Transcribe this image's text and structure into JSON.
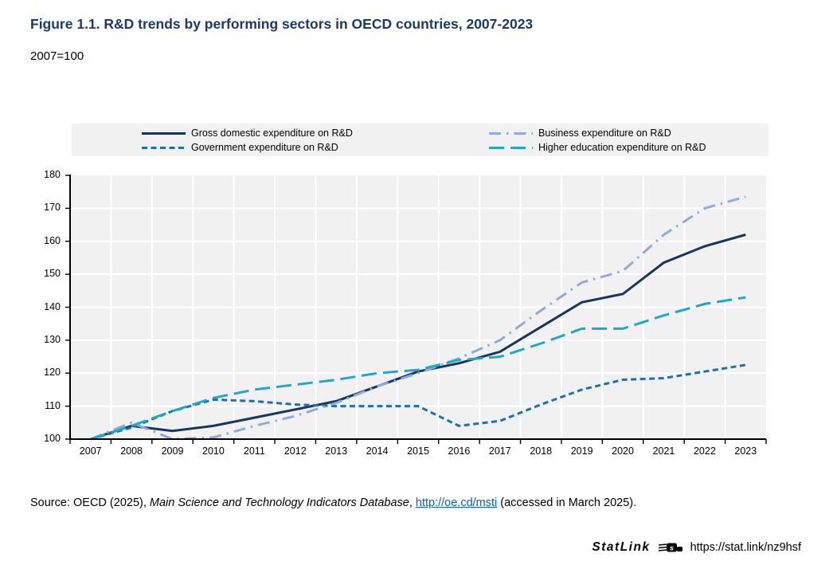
{
  "header": {
    "title": "Figure 1.1. R&D trends by performing sectors in OECD countries, 2007-2023",
    "subtitle": "2007=100"
  },
  "colors": {
    "title_navy": "#1a3a6b",
    "plot_background": "#f1f1f1",
    "gridline": "#ffffff",
    "axis": "#000000",
    "link_blue": "#0563c1"
  },
  "chart_data": {
    "type": "line",
    "title": "R&D trends by performing sectors in OECD countries, 2007-2023",
    "index_note": "2007=100",
    "categories": [
      "2007",
      "2008",
      "2009",
      "2010",
      "2011",
      "2012",
      "2013",
      "2014",
      "2015",
      "2016",
      "2017",
      "2018",
      "2019",
      "2020",
      "2021",
      "2022",
      "2023"
    ],
    "series": [
      {
        "name": "Gross domestic expenditure on R&D",
        "color": "#17365d",
        "dash": "solid",
        "values": [
          100,
          104,
          102.5,
          104,
          106.5,
          109,
          111.5,
          116,
          120.5,
          123,
          126.5,
          134,
          141.5,
          144,
          153.5,
          158.5,
          162
        ]
      },
      {
        "name": "Government expenditure on R&D",
        "color": "#1d70b8",
        "dash": "dashed",
        "values": [
          100,
          103.5,
          108.5,
          112,
          111.5,
          110.5,
          110,
          110,
          110,
          104,
          105.5,
          110.5,
          115,
          118,
          118.5,
          120.5,
          122.5
        ]
      },
      {
        "name": "Business expenditure on R&D",
        "color": "#8faadc",
        "dash": "dashdot",
        "values": [
          100,
          105,
          100,
          100.5,
          104,
          107,
          111,
          116,
          120,
          124.5,
          130,
          139,
          147.5,
          151,
          162,
          170,
          173.5
        ]
      },
      {
        "name": "Higher education expenditure on R&D",
        "color": "#1fa8c9",
        "dash": "longdash",
        "values": [
          100,
          104,
          108.5,
          112.5,
          115,
          116.5,
          118,
          120,
          121,
          124,
          125,
          129,
          133.5,
          133.5,
          137.5,
          141,
          143
        ]
      }
    ],
    "legend_columns": [
      [
        0,
        1
      ],
      [
        2,
        3
      ]
    ],
    "xlabel": "",
    "ylabel": "",
    "ylim": [
      100,
      180
    ],
    "yticks": [
      100,
      110,
      120,
      130,
      140,
      150,
      160,
      170,
      180
    ],
    "grid": true,
    "legend_position": "top"
  },
  "footer": {
    "source_prefix": "Source: OECD (2025), ",
    "source_italic": "Main Science and Technology Indicators Database",
    "source_mid": ", ",
    "source_link": "http://oe.cd/msti",
    "source_suffix": " (accessed in March 2025).",
    "statlink_label": "StatLink",
    "statlink_url": "https://stat.link/nz9hsf"
  }
}
